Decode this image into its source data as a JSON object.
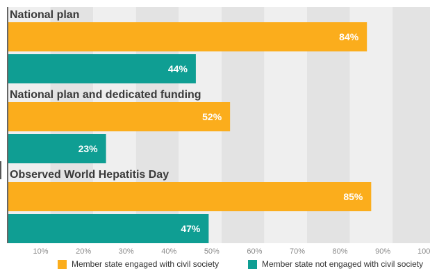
{
  "chart_data": {
    "type": "bar",
    "orientation": "horizontal",
    "categories": [
      "National plan",
      "National plan and dedicated funding",
      "Observed World Hepatitis Day"
    ],
    "series": [
      {
        "name": "Member state engaged with civil society",
        "color": "#FBAD1C",
        "values": [
          84,
          52,
          85
        ]
      },
      {
        "name": "Member state not engaged with civil society",
        "color": "#0F9E93",
        "values": [
          44,
          23,
          47
        ]
      }
    ],
    "value_labels": [
      [
        "84%",
        "52%",
        "85%"
      ],
      [
        "44%",
        "23%",
        "47%"
      ]
    ],
    "x_ticks": [
      "10%",
      "20%",
      "30%",
      "40%",
      "50%",
      "60%",
      "70%",
      "80%",
      "90%",
      "100"
    ],
    "xlim": [
      0,
      100
    ],
    "grid": "alternating vertical bands",
    "legend_position": "bottom"
  }
}
